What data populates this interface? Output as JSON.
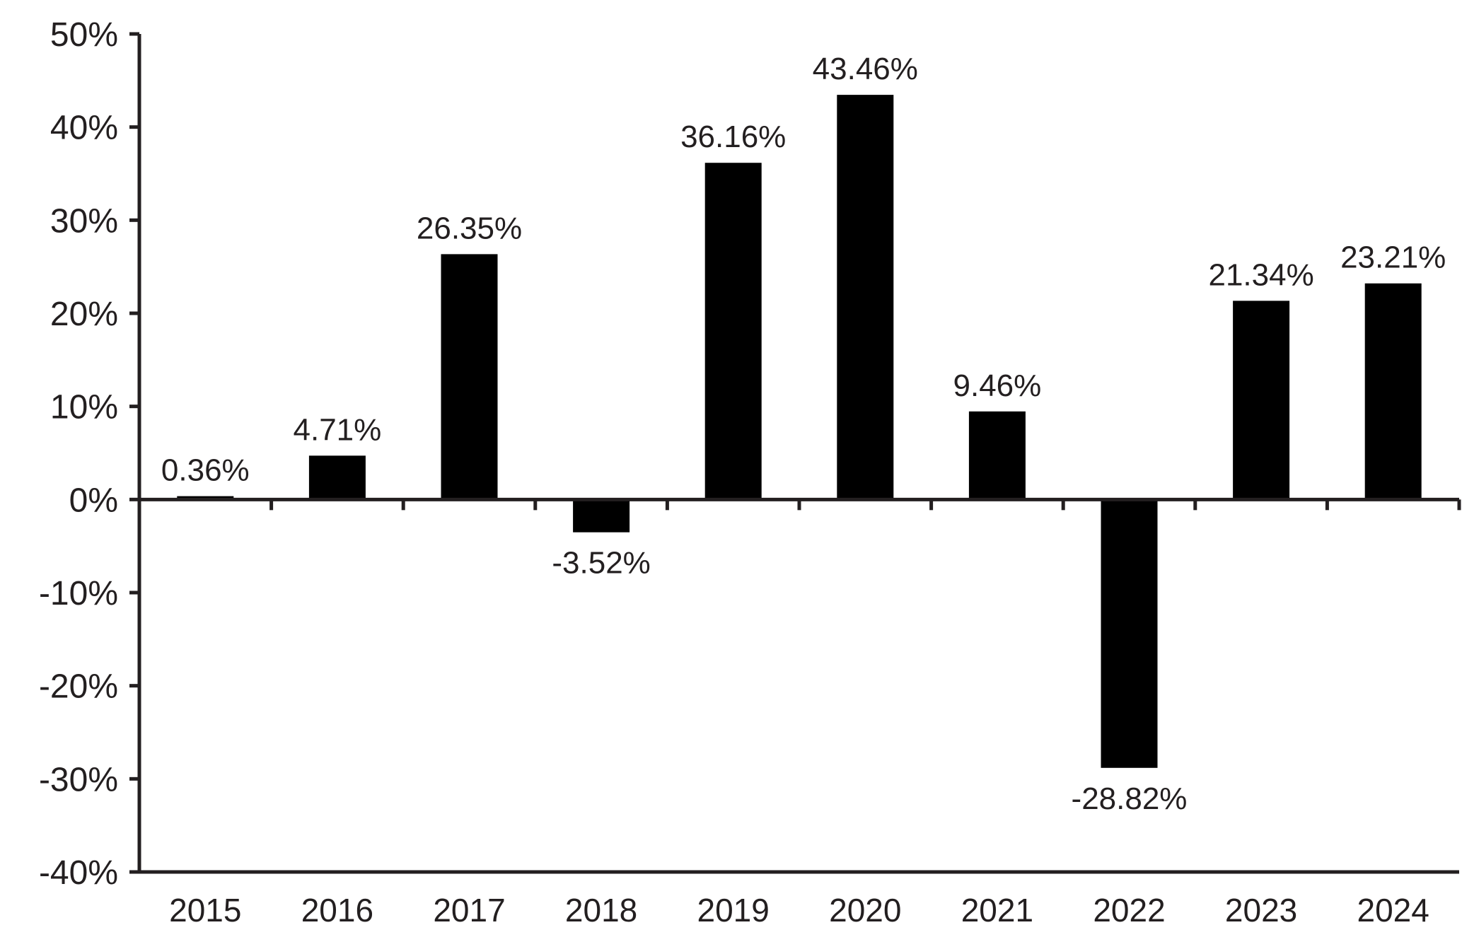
{
  "chart_data": {
    "type": "bar",
    "title": "",
    "xlabel": "",
    "ylabel": "",
    "categories": [
      "2015",
      "2016",
      "2017",
      "2018",
      "2019",
      "2020",
      "2021",
      "2022",
      "2023",
      "2024"
    ],
    "values": [
      0.36,
      4.71,
      26.35,
      -3.52,
      36.16,
      43.46,
      9.46,
      -28.82,
      21.34,
      23.21
    ],
    "data_labels": [
      "0.36%",
      "4.71%",
      "26.35%",
      "-3.52%",
      "36.16%",
      "43.46%",
      "9.46%",
      "-28.82%",
      "21.34%",
      "23.21%"
    ],
    "ylim": [
      -40,
      50
    ],
    "yticks": [
      50,
      40,
      30,
      20,
      10,
      0,
      -10,
      -20,
      -30,
      -40
    ],
    "ytick_labels": [
      "50%",
      "40%",
      "30%",
      "20%",
      "10%",
      "0%",
      "-10%",
      "-20%",
      "-30%",
      "-40%"
    ],
    "grid": false,
    "legend": "none",
    "bar_color": "#000000",
    "axis_color": "#231f20"
  }
}
